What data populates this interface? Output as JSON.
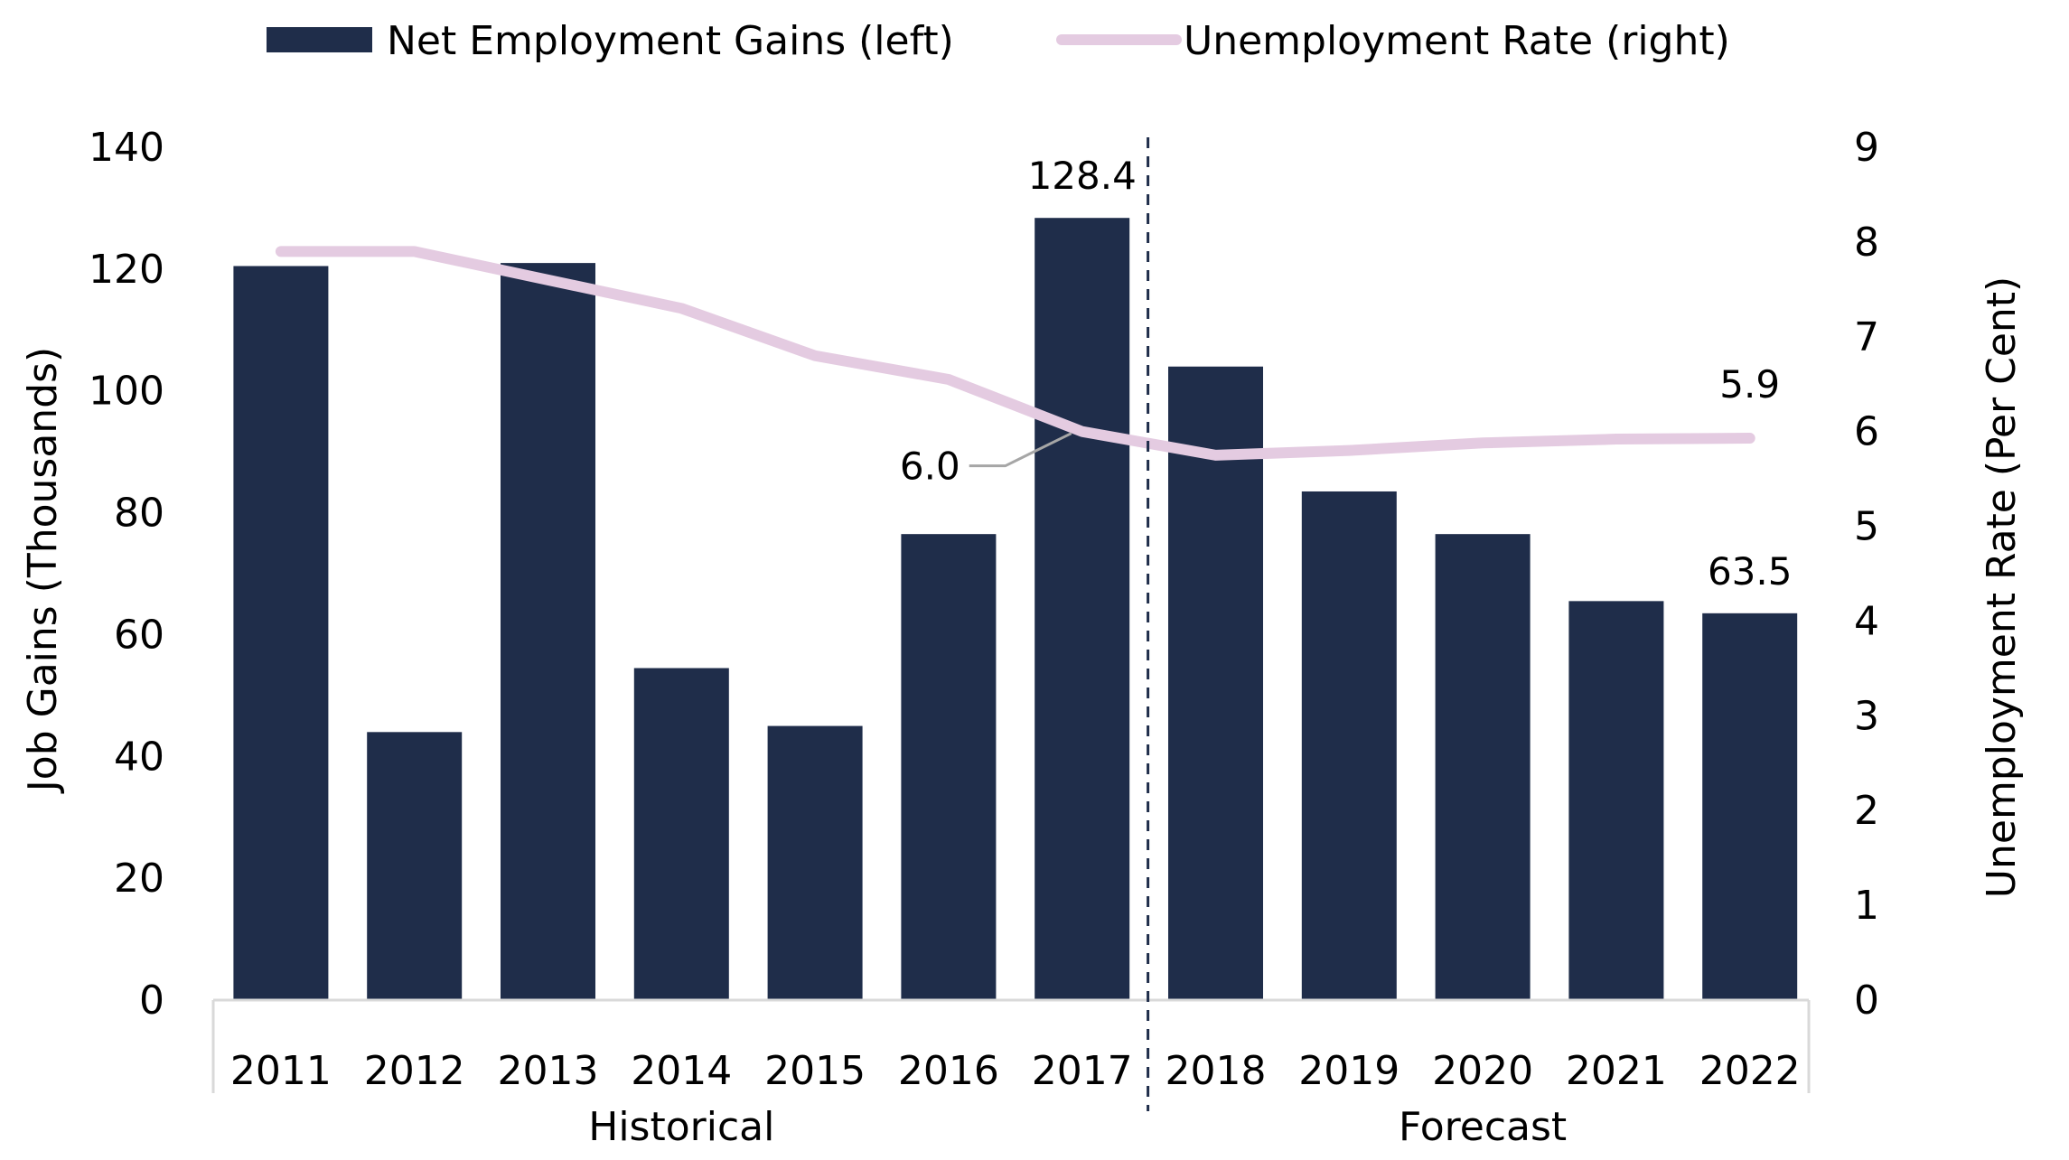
{
  "chart_data": {
    "type": "bar",
    "categories": [
      "2011",
      "2012",
      "2013",
      "2014",
      "2015",
      "2016",
      "2017",
      "2018",
      "2019",
      "2020",
      "2021",
      "2022"
    ],
    "series": [
      {
        "name": "Net Employment Gains (left)",
        "type": "bar",
        "axis": "left",
        "color": "#1f2d4a",
        "values": [
          120.5,
          44.0,
          121.0,
          54.5,
          45.0,
          76.5,
          128.4,
          104.0,
          83.5,
          76.5,
          65.5,
          63.5
        ]
      },
      {
        "name": "Unemployment Rate (right)",
        "type": "line",
        "axis": "right",
        "color": "#e4cbe1",
        "values": [
          7.9,
          7.9,
          7.6,
          7.3,
          6.8,
          6.55,
          6.0,
          5.75,
          5.8,
          5.88,
          5.92,
          5.93
        ]
      }
    ],
    "ylabel": "Job Gains (Thousands)",
    "ylabel_right": "Unemployment Rate (Per Cent)",
    "ylim": [
      0,
      140
    ],
    "yticks": [
      "0",
      "20",
      "40",
      "60",
      "80",
      "100",
      "120",
      "140"
    ],
    "ylim_right": [
      0,
      9
    ],
    "yticks_right": [
      "0",
      "1",
      "2",
      "3",
      "4",
      "5",
      "6",
      "7",
      "8",
      "9"
    ],
    "groups": [
      {
        "label": "Historical",
        "from": "2011",
        "to": "2017"
      },
      {
        "label": "Forecast",
        "from": "2018",
        "to": "2022"
      }
    ],
    "annotations": [
      {
        "text": "128.4",
        "category": "2017",
        "series": "bar"
      },
      {
        "text": "63.5",
        "category": "2022",
        "series": "bar"
      },
      {
        "text": "6.0",
        "category": "2017",
        "series": "line",
        "callout": true
      },
      {
        "text": "5.9",
        "category": "2022",
        "series": "line"
      }
    ],
    "grid": false,
    "legend": "top"
  }
}
